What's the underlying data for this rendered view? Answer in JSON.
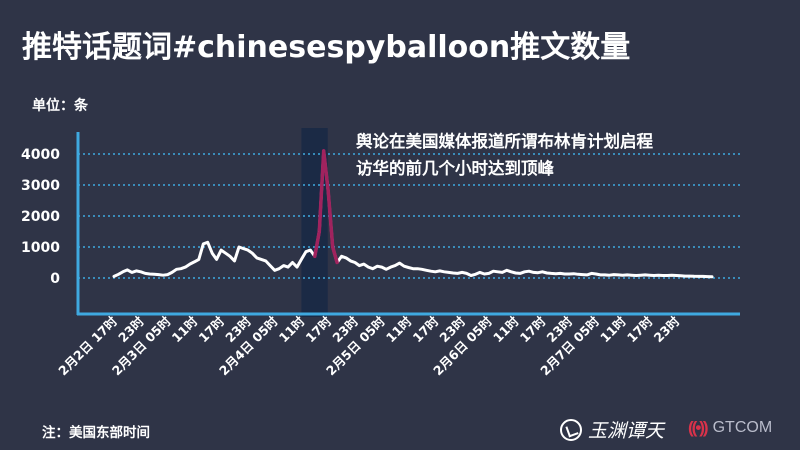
{
  "header": {
    "title": "推特话题词#chinesespyballoon推文数量",
    "unit": "单位：条"
  },
  "annotation": {
    "line1": "舆论在美国媒体报道所谓布林肯计划启程",
    "line2": "访华的前几个小时达到顶峰"
  },
  "footnote": "注：美国东部时间",
  "logos": {
    "left_text": "玉渊谭天",
    "right_text": "GTCOM",
    "left_icon": "brand-circle-icon",
    "right_icon": "signal-waves-icon"
  },
  "colors": {
    "background": "#2f3447",
    "line": "#ffffff",
    "peak_line": "#a0235e",
    "axis": "#3fa9e0",
    "gridline": "#3fa9e0",
    "highlight_band": "#1b2a45"
  },
  "chart_data": {
    "type": "line",
    "title": "推特话题词#chinesespyballoon推文数量",
    "ylabel": "单位：条",
    "ylim": [
      0,
      4500
    ],
    "yticks": [
      0,
      1000,
      2000,
      3000,
      4000
    ],
    "grid": true,
    "highlight": {
      "from_hour": 42,
      "to_hour": 47,
      "series_color": "#a0235e"
    },
    "xtick_labels": [
      "2月2日 17时",
      "23时",
      "2月3日 05时",
      "11时",
      "17时",
      "23时",
      "2月4日 05时",
      "11时",
      "17时",
      "23时",
      "2月5日 05时",
      "11时",
      "17时",
      "23时",
      "2月6日 05时",
      "11时",
      "17时",
      "23时",
      "2月7日 05时",
      "11时",
      "17时",
      "23时"
    ],
    "series": [
      {
        "x": [
          0,
          1,
          2,
          3,
          4,
          5,
          6,
          7,
          8,
          9,
          10,
          11,
          12,
          13,
          14,
          15,
          16,
          17,
          18,
          19,
          20,
          21,
          22,
          23,
          24,
          25,
          26,
          27,
          28,
          29,
          30,
          31,
          32,
          33,
          34,
          35,
          36,
          37,
          38,
          39,
          40,
          41,
          42,
          43,
          44,
          45,
          46,
          47,
          48,
          49,
          50,
          51,
          52,
          53,
          54,
          55,
          56,
          57,
          58,
          59,
          60,
          61,
          62,
          63,
          64,
          65,
          66,
          67,
          68,
          69,
          70,
          71,
          72,
          73,
          74,
          75,
          76,
          77,
          78,
          79,
          80,
          81,
          82,
          83,
          84,
          85,
          86,
          87,
          88,
          89,
          90,
          91,
          92,
          93,
          94,
          95,
          96,
          97,
          98,
          99,
          100,
          101,
          102,
          103,
          104,
          105,
          106,
          107,
          108,
          109,
          110,
          111,
          112,
          113,
          114,
          115,
          116,
          117,
          118,
          119,
          120,
          121,
          122,
          123,
          124,
          125,
          126,
          127,
          128,
          129,
          130,
          131,
          132,
          133,
          134
        ],
        "values": [
          50,
          120,
          200,
          260,
          180,
          230,
          200,
          150,
          130,
          120,
          110,
          90,
          110,
          180,
          280,
          300,
          350,
          450,
          520,
          600,
          1100,
          1150,
          800,
          600,
          900,
          800,
          700,
          550,
          1000,
          950,
          900,
          800,
          650,
          600,
          550,
          400,
          250,
          300,
          400,
          350,
          500,
          350,
          600,
          850,
          900,
          700,
          1500,
          4100,
          2800,
          1000,
          500,
          700,
          650,
          550,
          500,
          400,
          450,
          350,
          300,
          380,
          350,
          280,
          350,
          400,
          480,
          380,
          340,
          300,
          300,
          280,
          250,
          220,
          200,
          230,
          200,
          180,
          160,
          150,
          180,
          150,
          80,
          120,
          180,
          130,
          150,
          220,
          200,
          180,
          250,
          200,
          160,
          150,
          200,
          220,
          180,
          170,
          200,
          160,
          150,
          140,
          150,
          130,
          130,
          140,
          120,
          110,
          100,
          150,
          130,
          100,
          100,
          90,
          110,
          100,
          90,
          100,
          90,
          80,
          90,
          100,
          90,
          80,
          90,
          80,
          80,
          90,
          80,
          70,
          60,
          60,
          55,
          50,
          50,
          45,
          40
        ]
      }
    ]
  }
}
